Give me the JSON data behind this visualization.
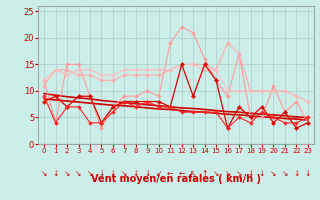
{
  "bg_color": "#cceee8",
  "grid_color": "#aacccc",
  "xlabel": "Vent moyen/en rafales ( km/h )",
  "xlabel_color": "#cc0000",
  "xlabel_fontsize": 7,
  "tick_color": "#cc0000",
  "ylim": [
    0,
    26
  ],
  "xlim": [
    -0.5,
    23.5
  ],
  "yticks": [
    0,
    5,
    10,
    15,
    20,
    25
  ],
  "xticks": [
    0,
    1,
    2,
    3,
    4,
    5,
    6,
    7,
    8,
    9,
    10,
    11,
    12,
    13,
    14,
    15,
    16,
    17,
    18,
    19,
    20,
    21,
    22,
    23
  ],
  "lines": [
    {
      "y": [
        12,
        4,
        15,
        15,
        9,
        3,
        7,
        9,
        9,
        10,
        9,
        19,
        22,
        21,
        16,
        12,
        9,
        17,
        5,
        5,
        11,
        6,
        8,
        4
      ],
      "color": "#ff9999",
      "lw": 0.8,
      "marker": "D",
      "ms": 2.0
    },
    {
      "y": [
        11,
        14,
        14,
        13,
        13,
        12,
        12,
        13,
        13,
        13,
        13,
        14,
        15,
        15,
        15,
        14,
        19,
        17,
        10,
        10,
        10,
        10,
        9,
        8
      ],
      "color": "#ffaaaa",
      "lw": 0.8,
      "marker": "D",
      "ms": 2.0
    },
    {
      "y": [
        12,
        14,
        13,
        14,
        14,
        13,
        13,
        14,
        14,
        14,
        14,
        14,
        15,
        15,
        14,
        14,
        10,
        10,
        10,
        10,
        10,
        10,
        9,
        8
      ],
      "color": "#ffbbbb",
      "lw": 0.8,
      "marker": "D",
      "ms": 1.8
    },
    {
      "y": [
        9.5,
        9.2,
        8.9,
        8.7,
        8.5,
        8.2,
        8.0,
        7.8,
        7.6,
        7.4,
        7.2,
        7.0,
        6.8,
        6.7,
        6.5,
        6.3,
        6.1,
        6.0,
        5.8,
        5.6,
        5.5,
        5.3,
        5.1,
        5.0
      ],
      "color": "#cc0000",
      "lw": 1.2,
      "marker": null,
      "ms": 0
    },
    {
      "y": [
        8.5,
        8.3,
        8.1,
        7.9,
        7.7,
        7.5,
        7.3,
        7.2,
        7.0,
        6.8,
        6.6,
        6.5,
        6.3,
        6.1,
        6.0,
        5.8,
        5.6,
        5.5,
        5.3,
        5.1,
        5.0,
        4.8,
        4.7,
        4.5
      ],
      "color": "#cc0000",
      "lw": 1.2,
      "marker": null,
      "ms": 0
    },
    {
      "y": [
        8,
        9,
        7,
        9,
        9,
        4,
        7,
        8,
        8,
        8,
        8,
        7,
        15,
        9,
        15,
        12,
        3,
        7,
        5,
        7,
        4,
        6,
        3,
        4
      ],
      "color": "#dd0000",
      "lw": 0.9,
      "marker": "D",
      "ms": 2.2
    },
    {
      "y": [
        9,
        4,
        7,
        7,
        4,
        4,
        6,
        8,
        7,
        8,
        7,
        7,
        6,
        6,
        6,
        6,
        3,
        5,
        4,
        6,
        5,
        4,
        4,
        5
      ],
      "color": "#ff2222",
      "lw": 0.8,
      "marker": "D",
      "ms": 2.0
    }
  ],
  "arrows": [
    "↘",
    "↓",
    "↘",
    "↘",
    "↘",
    "↓",
    "↓",
    "↘",
    "↓",
    "↓",
    "↙",
    "←",
    "←",
    "↖",
    "↑",
    "↘",
    "↘",
    "↘",
    "↓",
    "↓",
    "↘",
    "↘",
    "↓",
    "↓"
  ],
  "arrow_color": "#cc0000"
}
